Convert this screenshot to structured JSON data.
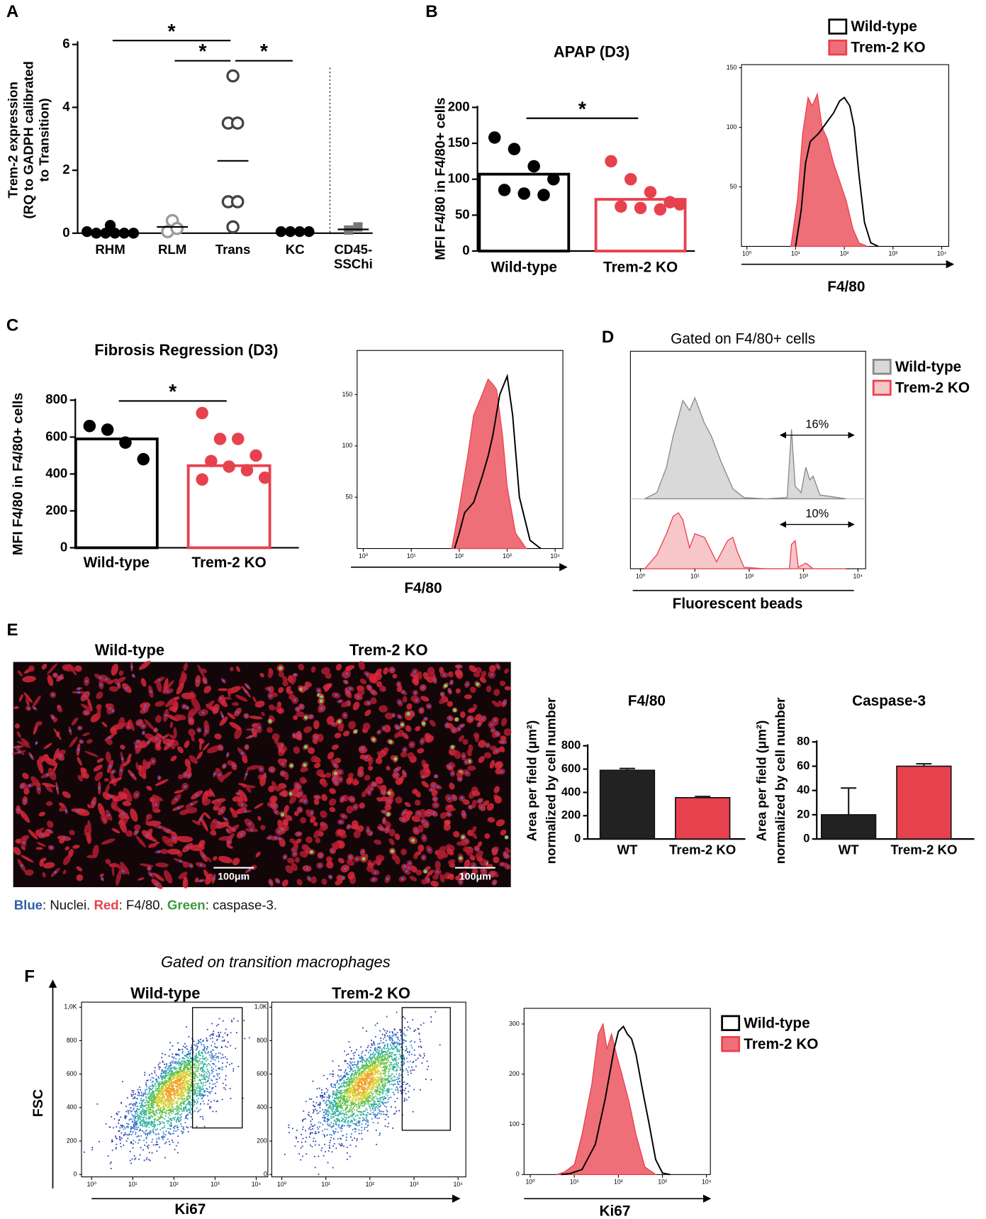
{
  "chart_data": [
    {
      "type": "dot",
      "panel": "A",
      "ylabel": [
        "Trem-2 expression",
        "(RQ to GADPH calibrated",
        "to Transition)"
      ],
      "categories": [
        "RHM",
        "RLM",
        "Trans",
        "KC",
        "CD45-\nSSChi"
      ],
      "points": [
        [
          0.25,
          0.05,
          0,
          0,
          0,
          0,
          0
        ],
        [
          0.4,
          0.05,
          0.15
        ],
        [
          5,
          3.5,
          3.5,
          1,
          1,
          0.2
        ],
        [
          0.05,
          0.05,
          0.05,
          0.05
        ],
        [
          0.1,
          0.2
        ]
      ],
      "means": [
        0.05,
        0.2,
        2.3,
        0.05,
        0.12
      ],
      "markers": [
        "filled",
        "open",
        "open",
        "filled",
        "square"
      ],
      "colors": [
        "#000000",
        "#9a9a9a",
        "#444444",
        "#000000",
        "#777777"
      ],
      "ylim": [
        0,
        6
      ],
      "yticks": [
        0,
        2,
        4,
        6
      ],
      "comparisons": [
        {
          "label": "*",
          "pair": [
            "RHM",
            "Trans"
          ]
        },
        {
          "label": "*",
          "pair": [
            "RLM",
            "Trans"
          ]
        },
        {
          "label": "*",
          "pair": [
            "Trans",
            "KC"
          ]
        }
      ]
    },
    {
      "type": "bar-dot",
      "panel": "B",
      "title": "APAP (D3)",
      "ylabel": "MFI F4/80 in F4/80+ cells",
      "categories": [
        "Wild-type",
        "Trem-2 KO"
      ],
      "values": [
        107,
        72
      ],
      "colors": [
        "#000000",
        "#e8414e"
      ],
      "points": [
        [
          158,
          142,
          118,
          100,
          85,
          80,
          78
        ],
        [
          125,
          100,
          82,
          68,
          62,
          60,
          58,
          65
        ]
      ],
      "ylim": [
        0,
        200
      ],
      "yticks": [
        0,
        50,
        100,
        150,
        200
      ],
      "comparisons": [
        {
          "label": "*",
          "pair": [
            "Wild-type",
            "Trem-2 KO"
          ]
        }
      ]
    },
    {
      "type": "histogram",
      "xlabel": "F4/80",
      "xscale": "log",
      "xlim": [
        1,
        10000
      ],
      "xticks": [
        {
          "value": 1,
          "label": "10⁰"
        },
        {
          "value": 10,
          "label": "10¹"
        },
        {
          "value": 100,
          "label": "10²"
        },
        {
          "value": 1000,
          "label": "10³"
        },
        {
          "value": 10000,
          "label": "10⁴"
        }
      ],
      "ylim": [
        0,
        150
      ],
      "yticks": [
        50,
        100,
        150
      ],
      "series": [
        {
          "name": "Wild-type",
          "color": "#000000",
          "x": [
            10,
            13,
            16,
            20,
            30,
            45,
            60,
            80,
            100,
            130,
            160,
            200,
            260,
            350,
            500
          ],
          "values": [
            0,
            30,
            70,
            88,
            95,
            105,
            112,
            122,
            125,
            118,
            100,
            60,
            20,
            3,
            0
          ]
        },
        {
          "name": "Trem-2 KO",
          "color": "#e8414e",
          "fill": "#ef6f78",
          "x": [
            8,
            11,
            14,
            18,
            22,
            28,
            35,
            45,
            60,
            80,
            110,
            150,
            200,
            300
          ],
          "values": [
            0,
            40,
            95,
            125,
            118,
            128,
            100,
            90,
            70,
            55,
            38,
            15,
            3,
            0
          ]
        }
      ]
    },
    {
      "type": "bar-dot",
      "panel": "C",
      "title": "Fibrosis Regression (D3)",
      "ylabel": "MFI F4/80 in F4/80+ cells",
      "categories": [
        "Wild-type",
        "Trem-2 KO"
      ],
      "values": [
        590,
        445
      ],
      "colors": [
        "#000000",
        "#e8414e"
      ],
      "points": [
        [
          660,
          640,
          570,
          480
        ],
        [
          730,
          590,
          590,
          500,
          470,
          440,
          420,
          380,
          370
        ]
      ],
      "ylim": [
        0,
        800
      ],
      "yticks": [
        0,
        200,
        400,
        600,
        800
      ],
      "comparisons": [
        {
          "label": "*",
          "pair": [
            "Wild-type",
            "Trem-2 KO"
          ]
        }
      ]
    },
    {
      "type": "histogram",
      "xlabel": "F4/80",
      "xscale": "log",
      "xlim": [
        1,
        10000
      ],
      "xticks": [
        {
          "value": 1,
          "label": "10⁰"
        },
        {
          "value": 10,
          "label": "10¹"
        },
        {
          "value": 100,
          "label": "10²"
        },
        {
          "value": 1000,
          "label": "10³"
        },
        {
          "value": 10000,
          "label": "10⁴"
        }
      ],
      "ylim": [
        0,
        190
      ],
      "yticks": [
        50,
        100,
        150
      ],
      "series": [
        {
          "color": "#000000",
          "x": [
            80,
            100,
            130,
            200,
            300,
            400,
            500,
            700,
            1000,
            1300,
            1800,
            3000,
            5000
          ],
          "values": [
            0,
            15,
            35,
            45,
            70,
            90,
            110,
            150,
            168,
            130,
            50,
            8,
            0
          ]
        },
        {
          "color": "#e8414e",
          "fill": "#ef6f78",
          "x": [
            70,
            100,
            150,
            200,
            300,
            400,
            500,
            600,
            800,
            1000,
            1500,
            2500
          ],
          "values": [
            0,
            40,
            90,
            130,
            150,
            165,
            160,
            155,
            110,
            60,
            15,
            0
          ]
        }
      ]
    },
    {
      "type": "stacked-histogram",
      "panel": "D",
      "title": "Gated on F4/80+ cells",
      "xlabel": "Fluorescent beads",
      "xscale": "log",
      "xlim": [
        1,
        10000
      ],
      "xticks": [
        {
          "value": 1,
          "label": "10⁰"
        },
        {
          "value": 10,
          "label": "10¹"
        },
        {
          "value": 100,
          "label": "10²"
        },
        {
          "value": 1000,
          "label": "10³"
        },
        {
          "value": 10000,
          "label": "10⁴"
        }
      ],
      "annotations": [
        "16%",
        "10%"
      ],
      "series": [
        {
          "name": "Wild-type",
          "color": "#888888",
          "fill": "#d9d9d9",
          "x": [
            1.2,
            2,
            3,
            4,
            5,
            6,
            8,
            10,
            15,
            20,
            30,
            50,
            80,
            200,
            500,
            600,
            700,
            900,
            1100,
            1300,
            1500,
            2000,
            3000,
            6000
          ],
          "values": [
            0,
            5,
            25,
            50,
            65,
            78,
            70,
            80,
            60,
            50,
            30,
            8,
            1,
            0,
            1,
            55,
            10,
            5,
            25,
            15,
            18,
            3,
            2,
            0
          ]
        },
        {
          "name": "Trem-2 KO",
          "color": "#e8414e",
          "fill": "#f7c6c9",
          "x": [
            1.2,
            2,
            3,
            4,
            5,
            6,
            8,
            10,
            15,
            25,
            40,
            50,
            60,
            80,
            200,
            550,
            600,
            700,
            800,
            1100,
            1500,
            6000
          ],
          "values": [
            0,
            20,
            50,
            75,
            80,
            70,
            30,
            50,
            45,
            10,
            40,
            45,
            25,
            2,
            0,
            0,
            35,
            40,
            2,
            8,
            0,
            0
          ]
        }
      ]
    },
    {
      "type": "bar-error",
      "title": "F4/80",
      "ylabel": [
        "Area per field  (μm²)",
        "normalized by cell number"
      ],
      "categories": [
        "WT",
        "Trem-2 KO"
      ],
      "values": [
        590,
        355
      ],
      "errors": [
        15,
        10
      ],
      "colors": [
        "#222222",
        "#e8414e"
      ],
      "ylim": [
        0,
        800
      ],
      "yticks": [
        0,
        200,
        400,
        600,
        800
      ]
    },
    {
      "type": "bar-error",
      "title": "Caspase-3",
      "ylabel": [
        "Area per field  (μm²)",
        "normalized by cell number"
      ],
      "categories": [
        "WT",
        "Trem-2 KO"
      ],
      "values": [
        20,
        60
      ],
      "errors": [
        22,
        2
      ],
      "colors": [
        "#222222",
        "#e8414e"
      ],
      "ylim": [
        0,
        80
      ],
      "yticks": [
        0,
        20,
        40,
        60,
        80
      ]
    },
    {
      "type": "density",
      "title": "Wild-type",
      "xlabel": "Ki67",
      "ylabel": "FSC",
      "xscale": "log",
      "xlim": [
        1,
        10000
      ],
      "xticks": [
        {
          "value": 1,
          "label": "10⁰"
        },
        {
          "value": 10,
          "label": "10¹"
        },
        {
          "value": 100,
          "label": "10²"
        },
        {
          "value": 1000,
          "label": "10³"
        },
        {
          "value": 10000,
          "label": "10⁴"
        }
      ],
      "ylim": [
        0,
        1030
      ],
      "yticks": [
        0,
        200,
        400,
        600,
        800,
        {
          "value": 1000,
          "label": "1,0K"
        }
      ]
    },
    {
      "type": "density",
      "title": "Trem-2 KO",
      "xscale": "log",
      "xlim": [
        1,
        10000
      ],
      "xticks": [
        {
          "value": 1,
          "label": "10⁰"
        },
        {
          "value": 10,
          "label": "10¹"
        },
        {
          "value": 100,
          "label": "10²"
        },
        {
          "value": 1000,
          "label": "10³"
        },
        {
          "value": 10000,
          "label": "10⁴"
        }
      ],
      "ylim": [
        0,
        1030
      ],
      "yticks": [
        0,
        200,
        400,
        600,
        800,
        {
          "value": 1000,
          "label": "1,0K"
        }
      ]
    },
    {
      "type": "histogram",
      "xlabel": "Ki67",
      "xscale": "log",
      "xlim": [
        1,
        10000
      ],
      "xticks": [
        {
          "value": 1,
          "label": "10⁰"
        },
        {
          "value": 10,
          "label": "10¹"
        },
        {
          "value": 100,
          "label": "10²"
        },
        {
          "value": 1000,
          "label": "10³"
        },
        {
          "value": 10000,
          "label": "10⁴"
        }
      ],
      "ylim": [
        0,
        325
      ],
      "yticks": [
        0,
        100,
        200,
        300
      ],
      "series": [
        {
          "name": "Wild-type",
          "color": "#000000",
          "x": [
            5,
            8,
            15,
            30,
            50,
            80,
            100,
            130,
            160,
            200,
            250,
            350,
            500,
            700,
            1000,
            1500
          ],
          "values": [
            0,
            2,
            10,
            60,
            150,
            250,
            285,
            295,
            280,
            270,
            240,
            170,
            100,
            30,
            3,
            0
          ]
        },
        {
          "name": "Trem-2 KO",
          "color": "#e8414e",
          "fill": "#ef6f78",
          "x": [
            4,
            6,
            10,
            15,
            25,
            35,
            45,
            55,
            70,
            90,
            120,
            180,
            250,
            400,
            700
          ],
          "values": [
            0,
            5,
            20,
            80,
            180,
            280,
            300,
            250,
            280,
            240,
            200,
            140,
            80,
            15,
            0
          ]
        }
      ]
    }
  ],
  "panel_E": {
    "label": "E",
    "images": [
      "Wild-type",
      "Trem-2 KO"
    ],
    "scale_bar": "100μm",
    "caption": [
      {
        "text": "Blue",
        "color": "#2f5fa8"
      },
      {
        "text": ": Nuclei. ",
        "color": "#111111"
      },
      {
        "text": "Red",
        "color": "#e8414e"
      },
      {
        "text": ": F4/80. ",
        "color": "#111111"
      },
      {
        "text": "Green",
        "color": "#3a9a3a"
      },
      {
        "text": ": caspase-3.",
        "color": "#111111"
      }
    ]
  },
  "panel_F": {
    "label": "F",
    "note": "Gated on transition macrophages"
  }
}
